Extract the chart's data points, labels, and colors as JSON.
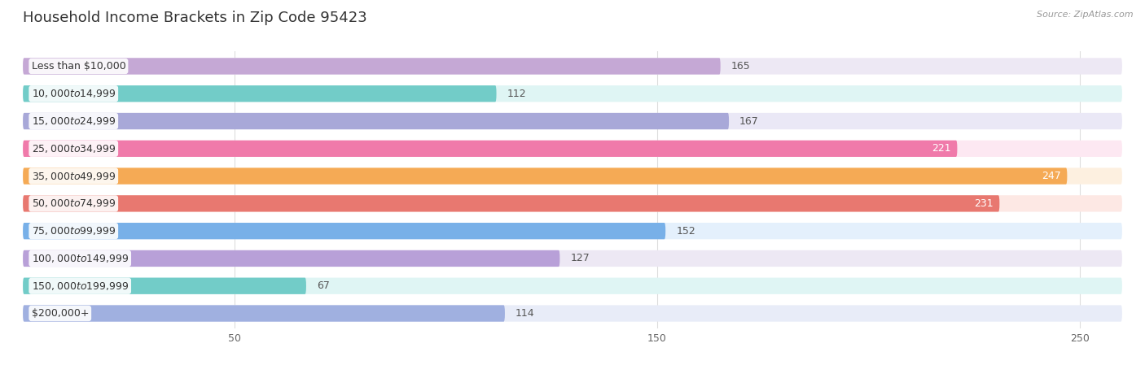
{
  "title": "Household Income Brackets in Zip Code 95423",
  "source": "Source: ZipAtlas.com",
  "categories": [
    "Less than $10,000",
    "$10,000 to $14,999",
    "$15,000 to $24,999",
    "$25,000 to $34,999",
    "$35,000 to $49,999",
    "$50,000 to $74,999",
    "$75,000 to $99,999",
    "$100,000 to $149,999",
    "$150,000 to $199,999",
    "$200,000+"
  ],
  "values": [
    165,
    112,
    167,
    221,
    247,
    231,
    152,
    127,
    67,
    114
  ],
  "bar_colors": [
    "#c5a8d5",
    "#72ccc8",
    "#a8a8d8",
    "#f07aaa",
    "#f5aa55",
    "#e87870",
    "#78b0e8",
    "#b8a0d8",
    "#72ccc8",
    "#a0b0e0"
  ],
  "bar_bg_colors": [
    "#ede8f4",
    "#dff5f4",
    "#eae8f6",
    "#fde8f2",
    "#fdf0e0",
    "#fde8e4",
    "#e4f0fc",
    "#ede8f4",
    "#dff5f4",
    "#e8ecf8"
  ],
  "label_bg_color": "#ffffff",
  "xlim_max": 260,
  "xticks": [
    50,
    150,
    250
  ],
  "title_fontsize": 13,
  "label_fontsize": 9,
  "value_fontsize": 9,
  "background_color": "#ffffff",
  "bar_area_bg": "#f7f7f7"
}
